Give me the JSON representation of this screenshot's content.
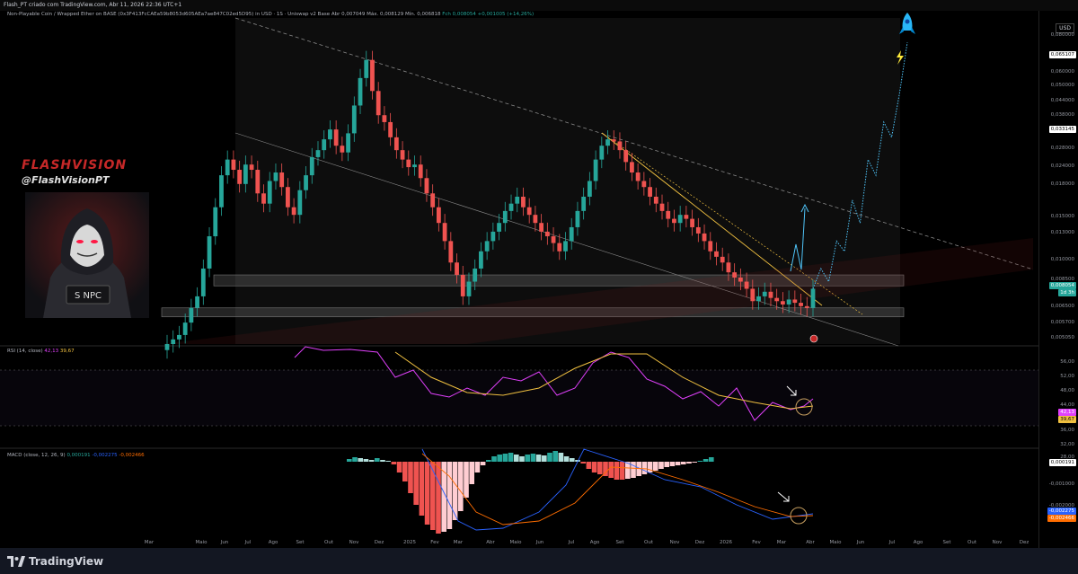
{
  "topbar": {
    "text": "Flash_PT criado com TradingView.com, Abr 11, 2026 22:36 UTC+1"
  },
  "legend": {
    "title": "Non-Playable Coin / Wrapped Ether on BASE (0x3F413FcCAEa59b8053d605AEa7ae847C02ed5D95) in USD · 1S · Uniswap v2 Base",
    "open": "Abr 0,007049",
    "high": "Máx. 0,008129",
    "low": "Mín. 0,006818",
    "close": "Fch 0,008054",
    "change": "+0,001005 (+14,26%)"
  },
  "brand": {
    "name": "FLASHVISION",
    "handle": "@FlashVisionPT",
    "badge": "S NPC"
  },
  "currency": "USD",
  "price_axis": {
    "labels": [
      "0,080000",
      "0,060000",
      "0,050000",
      "0,044000",
      "0,038000",
      "0,028000",
      "0,024000",
      "0,018000",
      "0,015000",
      "0,013000",
      "0,010000",
      "0,008500",
      "0,006500",
      "0,005700",
      "0,005050"
    ],
    "tag_target_1": "0,065107",
    "tag_target_2": "0,033145",
    "tag_current": "0,008054",
    "tag_time": "1d 3h"
  },
  "rsi": {
    "label": "RSI (14, close)",
    "rsi_value": "42,13",
    "ma_value": "39,67",
    "axis": [
      "56,00",
      "52,00",
      "48,00",
      "44,00",
      "36,00",
      "32,00",
      "28,00"
    ],
    "tag_rsi": "42,13",
    "tag_ma": "39,67"
  },
  "macd": {
    "label": "MACD (close, 12, 26, 9)",
    "hist_value": "0,000191",
    "macd_value": "-0,002275",
    "signal_value": "-0,002466",
    "axis": [
      "-0,001000",
      "-0,002000"
    ],
    "tag_hist": "0,000191",
    "tag_macd": "-0,002275",
    "tag_sig": "-0,002466"
  },
  "x_axis": [
    "Mar",
    "Maio",
    "Jun",
    "Jul",
    "Ago",
    "Set",
    "Out",
    "Nov",
    "Dez",
    "2025",
    "Fev",
    "Mar",
    "Abr",
    "Maio",
    "Jun",
    "Jul",
    "Ago",
    "Set",
    "Out",
    "Nov",
    "Dez",
    "2026",
    "Fev",
    "Mar",
    "Abr",
    "Maio",
    "Jun",
    "Jul",
    "Ago",
    "Set",
    "Out",
    "Nov",
    "Dez"
  ],
  "footer": {
    "logo": "TradingView"
  },
  "colors": {
    "up": "#26a69a",
    "down": "#ef5350",
    "rsi": "#e040fb",
    "rsi_ma": "#f0c040",
    "macd": "#2962ff",
    "signal": "#ff6d00",
    "projection": "#4fc3f7",
    "brand": "#c62828"
  },
  "chart_data": {
    "type": "candlestick",
    "title": "Non-Playable Coin / Wrapped Ether on BASE in USD · 1S",
    "scale": "log",
    "ylim": [
      0.005,
      0.08
    ],
    "support_zones": [
      [
        0.0063,
        0.0068
      ],
      [
        0.0082,
        0.009
      ]
    ],
    "closes_approx": [
      0.005,
      0.0052,
      0.0054,
      0.006,
      0.0068,
      0.0075,
      0.0095,
      0.0125,
      0.016,
      0.021,
      0.024,
      0.022,
      0.0195,
      0.023,
      0.022,
      0.018,
      0.0165,
      0.02,
      0.0215,
      0.019,
      0.016,
      0.015,
      0.0185,
      0.021,
      0.0245,
      0.026,
      0.0285,
      0.031,
      0.027,
      0.0255,
      0.03,
      0.038,
      0.048,
      0.056,
      0.043,
      0.035,
      0.033,
      0.029,
      0.026,
      0.024,
      0.0225,
      0.023,
      0.0205,
      0.018,
      0.016,
      0.014,
      0.012,
      0.01,
      0.009,
      0.0075,
      0.0085,
      0.0095,
      0.011,
      0.012,
      0.013,
      0.014,
      0.0155,
      0.0165,
      0.0175,
      0.016,
      0.015,
      0.014,
      0.013,
      0.0125,
      0.0118,
      0.011,
      0.012,
      0.0135,
      0.0155,
      0.0175,
      0.02,
      0.024,
      0.027,
      0.0285,
      0.028,
      0.026,
      0.0235,
      0.0215,
      0.02,
      0.019,
      0.0175,
      0.0165,
      0.0155,
      0.0145,
      0.014,
      0.015,
      0.0145,
      0.0135,
      0.0128,
      0.012,
      0.011,
      0.0105,
      0.01,
      0.0092,
      0.0088,
      0.0085,
      0.008,
      0.0072,
      0.0075,
      0.0078,
      0.0074,
      0.0072,
      0.007,
      0.0073,
      0.0071,
      0.0069,
      0.0068,
      0.008
    ],
    "projection": [
      0.008,
      0.0095,
      0.0085,
      0.012,
      0.011,
      0.017,
      0.014,
      0.024,
      0.021,
      0.033,
      0.029,
      0.042,
      0.065
    ]
  }
}
